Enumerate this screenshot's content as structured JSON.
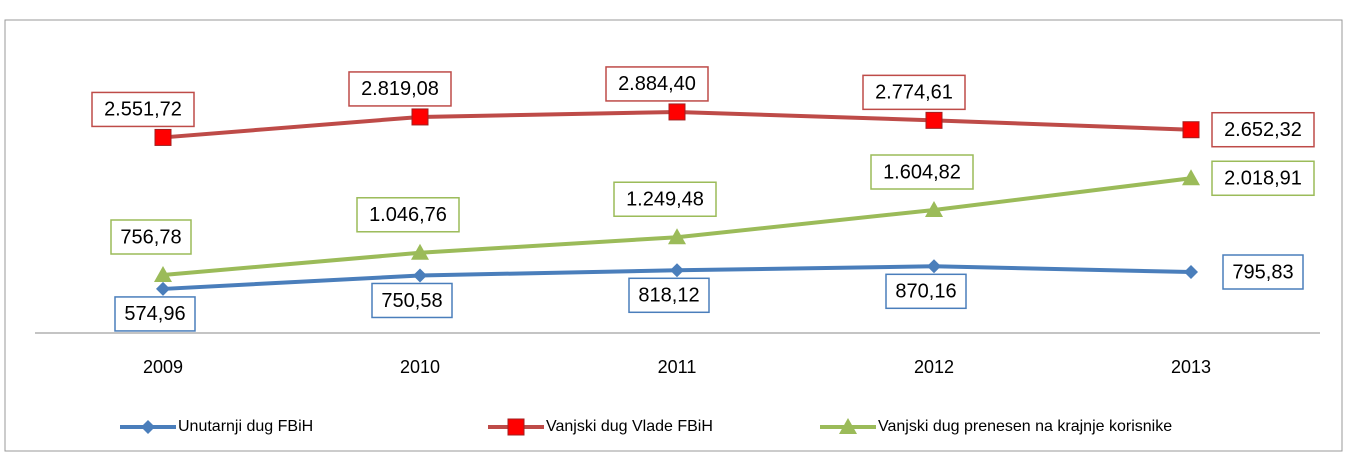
{
  "chart_data": {
    "type": "line",
    "categories": [
      "2009",
      "2010",
      "2011",
      "2012",
      "2013"
    ],
    "series": [
      {
        "name": "Unutarnji dug FBiH",
        "color": "#4a7ebb",
        "marker": "diamond",
        "values": [
          574.96,
          750.58,
          818.12,
          870.16,
          795.83
        ],
        "value_labels": [
          "574,96",
          "750,58",
          "818,12",
          "870,16",
          "795,83"
        ]
      },
      {
        "name": "Vanjski dug Vlade FBiH",
        "color": "#be4b48",
        "marker": "square",
        "values": [
          2551.72,
          2819.08,
          2884.4,
          2774.61,
          2652.32
        ],
        "value_labels": [
          "2.551,72",
          "2.819,08",
          "2.884,40",
          "2.774,61",
          "2.652,32"
        ]
      },
      {
        "name": "Vanjski dug prenesen na krajnje korisnike",
        "color": "#9bbb59",
        "marker": "triangle",
        "values": [
          756.78,
          1046.76,
          1249.48,
          1604.82,
          2018.91
        ],
        "value_labels": [
          "756,78",
          "1.046,76",
          "1.249,48",
          "1.604,82",
          "2.018,91"
        ]
      }
    ],
    "legend": "bottom"
  }
}
